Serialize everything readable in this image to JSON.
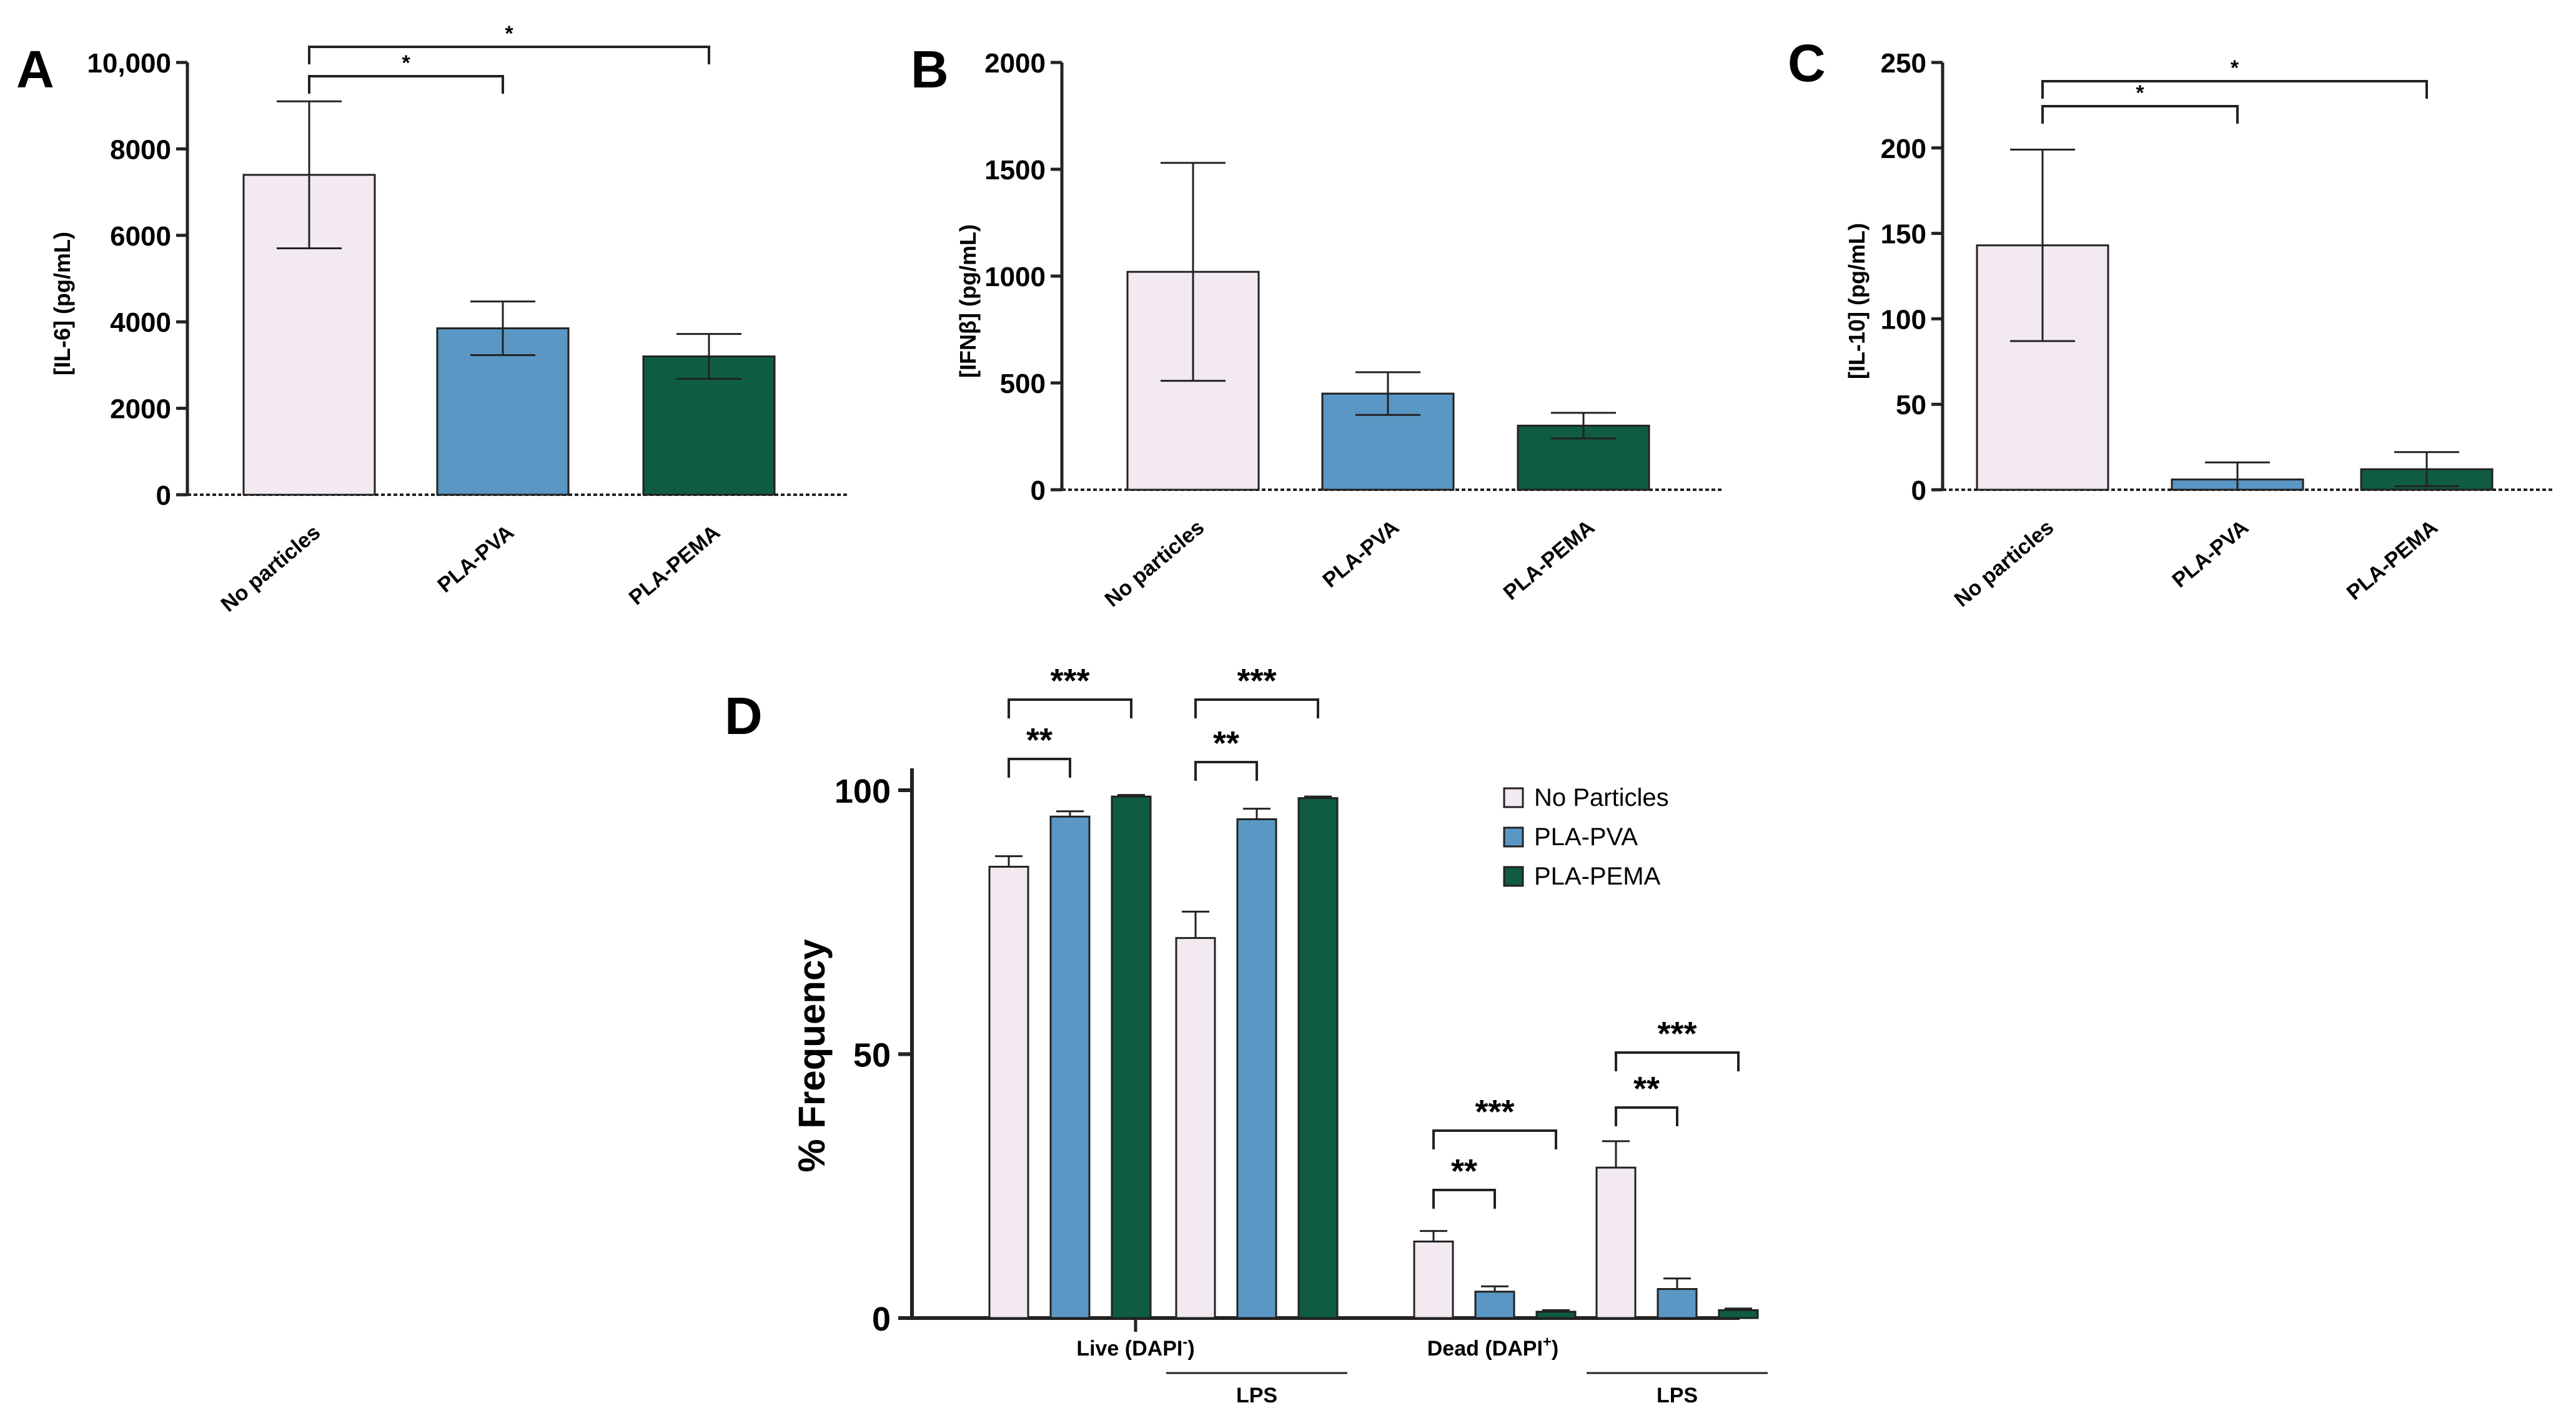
{
  "colors": {
    "no_particles": "#f3e9f1",
    "pla_pva": "#5a97c4",
    "pla_pema": "#0f5b44",
    "stroke": "#222222"
  },
  "chart_data": [
    {
      "panel": "A",
      "type": "bar",
      "ylabel": "[IL-6] (pg/mL)",
      "categories": [
        "No particles",
        "PLA-PVA",
        "PLA-PEMA"
      ],
      "values": [
        7400,
        3850,
        3200
      ],
      "errors": [
        1700,
        620,
        520
      ],
      "ylim": [
        0,
        10000
      ],
      "yticks": [
        0,
        2000,
        4000,
        6000,
        8000,
        10000
      ],
      "ytick_labels": [
        "0",
        "2000",
        "4000",
        "6000",
        "8000",
        "10,000"
      ],
      "significance": [
        {
          "from": 0,
          "to": 1,
          "label": "*"
        },
        {
          "from": 0,
          "to": 2,
          "label": "*"
        }
      ]
    },
    {
      "panel": "B",
      "type": "bar",
      "ylabel": "[IFNβ] (pg/mL)",
      "categories": [
        "No particles",
        "PLA-PVA",
        "PLA-PEMA"
      ],
      "values": [
        1020,
        450,
        300
      ],
      "errors": [
        510,
        100,
        60
      ],
      "ylim": [
        0,
        2000
      ],
      "yticks": [
        0,
        500,
        1000,
        1500,
        2000
      ],
      "ytick_labels": [
        "0",
        "500",
        "1000",
        "1500",
        "2000"
      ],
      "significance": []
    },
    {
      "panel": "C",
      "type": "bar",
      "ylabel": "[IL-10] (pg/mL)",
      "categories": [
        "No particles",
        "PLA-PVA",
        "PLA-PEMA"
      ],
      "values": [
        143,
        6,
        12
      ],
      "errors": [
        56,
        10,
        10
      ],
      "ylim": [
        0,
        250
      ],
      "yticks": [
        0,
        50,
        100,
        150,
        200,
        250
      ],
      "ytick_labels": [
        "0",
        "50",
        "100",
        "150",
        "200",
        "250"
      ],
      "significance": [
        {
          "from": 0,
          "to": 1,
          "label": "*"
        },
        {
          "from": 0,
          "to": 2,
          "label": "*"
        }
      ]
    },
    {
      "panel": "D",
      "type": "bar",
      "ylabel": "% Frequency",
      "legend": [
        "No Particles",
        "PLA-PVA",
        "PLA-PEMA"
      ],
      "legend_position": "right",
      "groups": [
        {
          "label": "Live (DAPI",
          "sup": "-",
          "close": ")",
          "lps": false,
          "values": [
            85.5,
            95,
            98.8
          ],
          "errors": [
            2,
            1,
            0.3
          ]
        },
        {
          "label": "",
          "sup": "",
          "close": "",
          "lps": true,
          "values": [
            72,
            94.5,
            98.5
          ],
          "errors": [
            5,
            2,
            0.3
          ]
        },
        {
          "label": "Dead (DAPI",
          "sup": "+",
          "close": ")",
          "lps": false,
          "values": [
            14.5,
            5,
            1.2
          ],
          "errors": [
            2,
            1,
            0.3
          ]
        },
        {
          "label": "",
          "sup": "",
          "close": "",
          "lps": true,
          "values": [
            28.5,
            5.5,
            1.5
          ],
          "errors": [
            5,
            2,
            0.3
          ]
        }
      ],
      "lps_label": "LPS",
      "ylim": [
        0,
        100
      ],
      "yticks": [
        0,
        50,
        100
      ],
      "ytick_labels": [
        "0",
        "50",
        "100"
      ],
      "significance": [
        {
          "group": 0,
          "from": 0,
          "to": 1,
          "label": "**"
        },
        {
          "group": 0,
          "from": 0,
          "to": 2,
          "label": "***"
        },
        {
          "group": 1,
          "from": 0,
          "to": 1,
          "label": "**"
        },
        {
          "group": 1,
          "from": 0,
          "to": 2,
          "label": "***"
        },
        {
          "group": 2,
          "from": 0,
          "to": 1,
          "label": "**"
        },
        {
          "group": 2,
          "from": 0,
          "to": 2,
          "label": "***"
        },
        {
          "group": 3,
          "from": 0,
          "to": 1,
          "label": "**"
        },
        {
          "group": 3,
          "from": 0,
          "to": 2,
          "label": "***"
        }
      ]
    }
  ]
}
